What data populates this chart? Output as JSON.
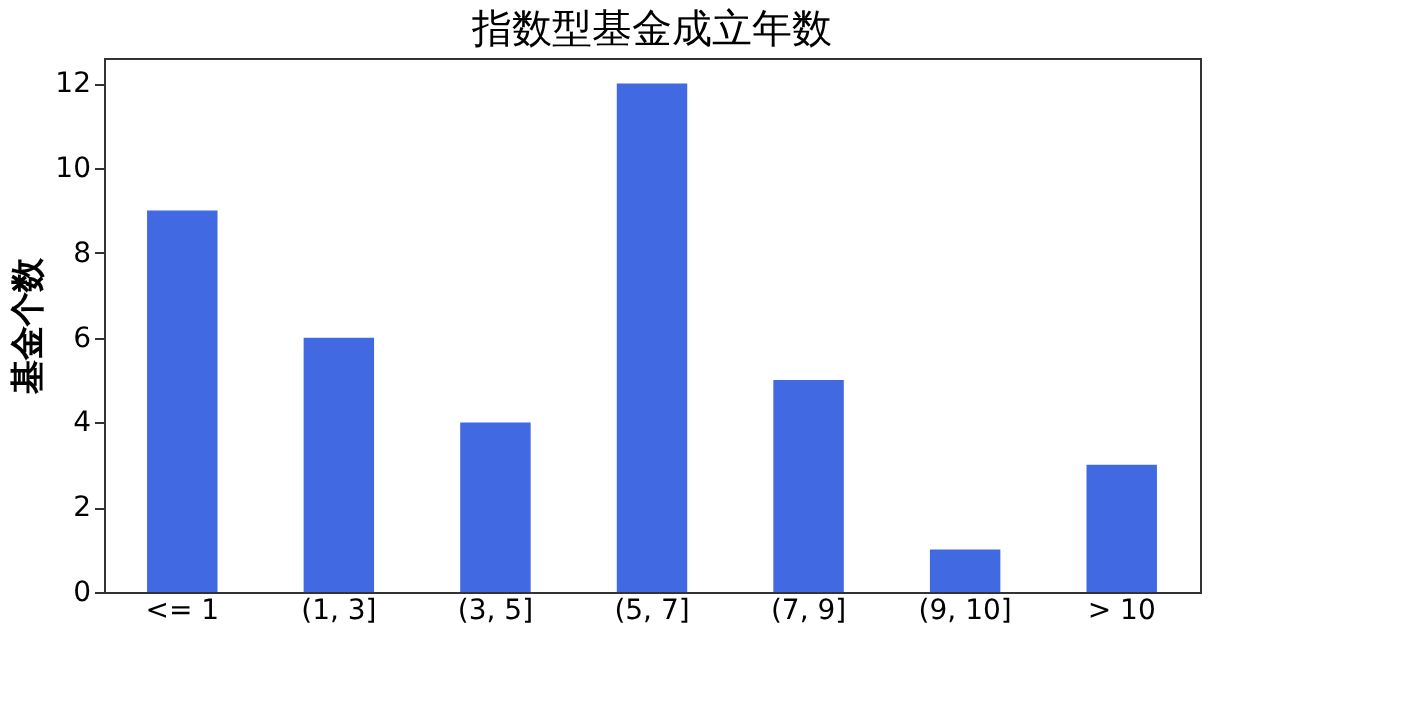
{
  "chart_data": {
    "type": "bar",
    "title": "指数型基金成立年数",
    "ylabel": "基金个数",
    "categories": [
      "<= 1",
      "(1, 3]",
      "(3, 5]",
      "(5, 7]",
      "(7, 9]",
      "(9, 10]",
      "> 10"
    ],
    "values": [
      9,
      6,
      4,
      12,
      5,
      1,
      3
    ],
    "color": "#4169e1",
    "ylim": [
      0,
      12.6
    ],
    "yticks": [
      0,
      2,
      4,
      6,
      8,
      10,
      12
    ],
    "grid": false
  }
}
